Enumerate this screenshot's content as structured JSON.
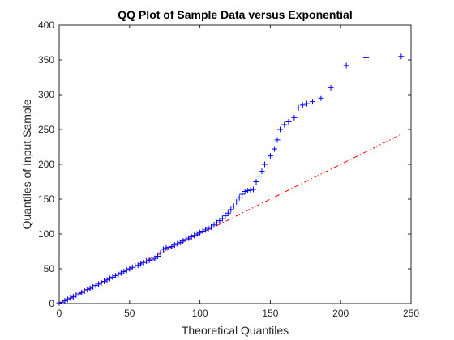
{
  "chart_data": {
    "type": "scatter",
    "title": "QQ Plot of Sample Data versus Exponential",
    "xlabel": "Theoretical Quantiles",
    "ylabel": "Quantiles of Input Sample",
    "xlim": [
      0,
      250
    ],
    "ylim": [
      0,
      400
    ],
    "x_ticks": [
      "0",
      "50",
      "100",
      "150",
      "200",
      "250"
    ],
    "y_ticks": [
      "0",
      "50",
      "100",
      "150",
      "200",
      "250",
      "300",
      "350",
      "400"
    ],
    "grid": false,
    "legend": "none",
    "colors": {
      "points": "#0000ff",
      "reference_line": "#ff0000",
      "axes": "#262626"
    },
    "marker": "plus",
    "reference_line": {
      "style": "dash-dot",
      "x": [
        0,
        243
      ],
      "y": [
        0,
        243
      ]
    },
    "series": [
      {
        "x": [
          0,
          2,
          4,
          6,
          8,
          10,
          12,
          14,
          16,
          18,
          20,
          22,
          24,
          26,
          28,
          30,
          32,
          34,
          36,
          38,
          40,
          42,
          44,
          46,
          48,
          50,
          52,
          54,
          56,
          58,
          60,
          62,
          64,
          66,
          68,
          70,
          72,
          74,
          76,
          78,
          80,
          82,
          84,
          86,
          88,
          90,
          92,
          94,
          96,
          98,
          100,
          102,
          104,
          106,
          108,
          110,
          112,
          114,
          116,
          118,
          120,
          122,
          124,
          126,
          128,
          130,
          132,
          134,
          136,
          138,
          140,
          142,
          144,
          146,
          150,
          153,
          155,
          157,
          160,
          163,
          167,
          170,
          173,
          176,
          180,
          186,
          193,
          204,
          218,
          243
        ],
        "y": [
          1,
          2,
          4,
          6,
          8,
          10,
          12,
          14,
          16,
          18,
          20,
          22,
          24,
          26,
          28,
          30,
          32,
          34,
          36,
          38,
          40,
          42,
          44,
          46,
          48,
          50,
          52,
          54,
          55,
          57,
          59,
          61,
          62,
          63,
          65,
          68,
          73,
          78,
          80,
          81,
          82,
          84,
          86,
          88,
          90,
          92,
          94,
          96,
          98,
          100,
          102,
          104,
          106,
          108,
          110,
          113,
          116,
          119,
          122,
          126,
          130,
          135,
          140,
          146,
          152,
          157,
          161,
          162,
          163,
          164,
          175,
          183,
          190,
          200,
          212,
          222,
          235,
          250,
          257,
          261,
          267,
          281,
          285,
          287,
          290,
          295,
          310,
          342,
          353,
          355
        ]
      }
    ]
  }
}
